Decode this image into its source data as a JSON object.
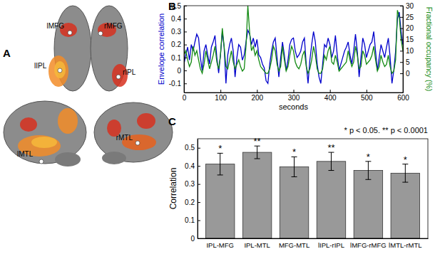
{
  "brain_panel": {
    "title": "A",
    "regions": [
      {
        "label": "lMFG"
      },
      {
        "label": "rMFG"
      },
      {
        "label": "lIPL"
      },
      {
        "label": "rIPL"
      },
      {
        "label": "lMTL"
      },
      {
        "label": "rMTL"
      }
    ]
  },
  "chart_data": [
    {
      "type": "line",
      "title": "B",
      "xlabel": "seconds",
      "ylabel": "Envelope correlation",
      "y2label": "Fractional occupancy (%)",
      "x": [
        0,
        5,
        10,
        15,
        20,
        25,
        30,
        35,
        40,
        45,
        50,
        55,
        60,
        65,
        70,
        75,
        80,
        85,
        90,
        95,
        100,
        105,
        110,
        115,
        120,
        125,
        130,
        135,
        140,
        145,
        150,
        155,
        160,
        165,
        170,
        175,
        180,
        185,
        190,
        195,
        200,
        205,
        210,
        215,
        220,
        225,
        230,
        235,
        240,
        245,
        250,
        255,
        260,
        265,
        270,
        275,
        280,
        285,
        290,
        295,
        300,
        305,
        310,
        315,
        320,
        325,
        330,
        335,
        340,
        345,
        350,
        355,
        360,
        365,
        370,
        375,
        380,
        385,
        390,
        395,
        400,
        405,
        410,
        415,
        420,
        425,
        430,
        435,
        440,
        445,
        450,
        455,
        460,
        465,
        470,
        475,
        480,
        485,
        490,
        495,
        500,
        505,
        510,
        515,
        520,
        525,
        530,
        535,
        540,
        545,
        550,
        555,
        560,
        565,
        570,
        575,
        580,
        585,
        590,
        595,
        600
      ],
      "series": [
        {
          "color": "#0000cc",
          "values": [
            0.05,
            0.12,
            0.18,
            0.08,
            0.2,
            0.15,
            0.22,
            0.28,
            0.25,
            0.1,
            0.0,
            0.15,
            0.2,
            0.12,
            0.05,
            0.18,
            0.22,
            0.27,
            0.1,
            -0.02,
            0.12,
            0.3,
            0.18,
            -0.1,
            0.12,
            0.2,
            0.25,
            0.15,
            -0.05,
            0.1,
            0.2,
            0.18,
            0.08,
            0.12,
            0.22,
            0.31,
            0.28,
            0.2,
            0.25,
            0.18,
            0.24,
            0.12,
            0.1,
            0.05,
            0.02,
            -0.08,
            -0.1,
            0.05,
            0.15,
            0.22,
            0.25,
            0.1,
            -0.05,
            0.1,
            0.22,
            0.12,
            0.0,
            0.08,
            0.2,
            0.24,
            0.25,
            0.15,
            0.1,
            0.12,
            0.15,
            0.22,
            0.25,
            0.05,
            -0.1,
            0.08,
            0.2,
            0.3,
            0.22,
            0.05,
            -0.05,
            -0.1,
            0.05,
            0.2,
            0.18,
            0.25,
            0.2,
            0.1,
            0.15,
            0.27,
            0.12,
            0.0,
            0.05,
            0.1,
            0.15,
            0.18,
            0.22,
            0.12,
            0.05,
            0.15,
            0.28,
            0.15,
            -0.05,
            0.1,
            0.25,
            0.2,
            0.1,
            0.15,
            0.2,
            0.22,
            0.3,
            0.15,
            0.0,
            0.1,
            0.2,
            0.15,
            0.1,
            0.18,
            0.25,
            0.1,
            -0.1,
            0.0,
            0.15,
            0.4,
            0.45,
            0.3,
            0.2
          ]
        },
        {
          "color": "#138a13",
          "axis": "y2",
          "values": [
            8,
            10,
            6,
            3,
            5,
            12,
            8,
            10,
            6,
            2,
            0,
            4,
            10,
            6,
            2,
            5,
            8,
            12,
            5,
            2,
            8,
            20,
            12,
            3,
            2,
            6,
            10,
            5,
            2,
            4,
            6,
            3,
            1,
            2,
            12,
            30,
            18,
            10,
            12,
            8,
            10,
            6,
            3,
            2,
            1,
            0,
            0,
            2,
            6,
            12,
            10,
            4,
            1,
            3,
            12,
            6,
            1,
            3,
            8,
            12,
            10,
            5,
            3,
            2,
            4,
            8,
            10,
            3,
            0,
            2,
            6,
            12,
            8,
            2,
            0,
            0,
            2,
            8,
            6,
            10,
            12,
            5,
            4,
            8,
            5,
            1,
            2,
            3,
            4,
            5,
            10,
            6,
            3,
            5,
            12,
            8,
            2,
            3,
            10,
            8,
            4,
            5,
            6,
            8,
            12,
            6,
            1,
            3,
            8,
            5,
            3,
            4,
            8,
            3,
            0,
            1,
            6,
            28,
            25,
            15,
            10
          ]
        }
      ],
      "xlim": [
        0,
        600
      ],
      "xticks": [
        0,
        100,
        200,
        300,
        400,
        500,
        600
      ],
      "ylim": [
        -0.17,
        0.5
      ],
      "yticks": [
        -0.1,
        0,
        0.1,
        0.2,
        0.3,
        0.4,
        0.5
      ],
      "y2lim": [
        -8.5,
        30
      ],
      "y2ticks": [
        0,
        5,
        10,
        15,
        20,
        25,
        30
      ],
      "grid": false
    },
    {
      "type": "bar",
      "title": "C",
      "subtitle": "* p < 0.05. ** p < 0.0001",
      "ylabel": "Correlation",
      "categories": [
        "IPL-MFG",
        "IPL-MTL",
        "MFG-MTL",
        "lIPL-rIPL",
        "lMFG-rMFG",
        "lMTL-rMTL"
      ],
      "values": [
        0.41,
        0.475,
        0.395,
        0.425,
        0.375,
        0.36
      ],
      "errors": [
        0.06,
        0.035,
        0.055,
        0.05,
        0.05,
        0.05
      ],
      "annotations": [
        "*",
        "**",
        "*",
        "**",
        "*",
        "*"
      ],
      "color": "#999999",
      "ylim": [
        0,
        0.55
      ],
      "yticks": [
        0,
        0.1,
        0.2,
        0.3,
        0.4,
        0.5
      ],
      "grid": false
    }
  ]
}
